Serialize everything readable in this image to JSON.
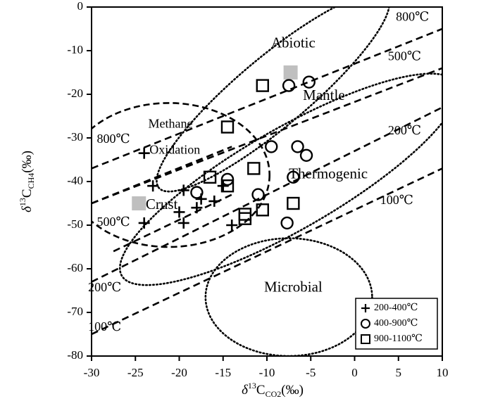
{
  "chart_data": {
    "type": "scatter",
    "x_axis": {
      "range": [
        -30,
        10
      ],
      "ticks": [
        -30,
        -25,
        -20,
        -15,
        -10,
        -5,
        0,
        5,
        10
      ],
      "tick_labels": [
        "-30",
        "-25",
        "-20",
        "-15",
        "-10",
        "-5",
        "0",
        "5",
        "10"
      ],
      "label": {
        "delta": "δ",
        "sup": "13",
        "base": "C",
        "sub": "CO2",
        "unit": "(‰)"
      }
    },
    "y_axis": {
      "range": [
        -80,
        0
      ],
      "ticks": [
        0,
        -10,
        -20,
        -30,
        -40,
        -50,
        -60,
        -70,
        -80
      ],
      "tick_labels": [
        "0",
        "-10",
        "-20",
        "-30",
        "-40",
        "-50",
        "-60",
        "-70",
        "-80"
      ],
      "label": {
        "delta": "δ",
        "sup": "13",
        "base": "C",
        "sub": "CH4",
        "unit": "(‰)"
      }
    },
    "isotherms": [
      {
        "name": "800℃ upper",
        "from": [
          -30,
          -37
        ],
        "to": [
          10,
          -5
        ]
      },
      {
        "name": "500℃ upper",
        "from": [
          -30,
          -45
        ],
        "to": [
          10,
          -14
        ]
      },
      {
        "name": "200℃ upper",
        "from": [
          -30,
          -63
        ],
        "to": [
          10,
          -23
        ]
      },
      {
        "name": "100℃ upper",
        "from": [
          -30,
          -75
        ],
        "to": [
          10,
          -37
        ]
      },
      {
        "name": "800℃ crust",
        "from": [
          -30,
          -45
        ],
        "to": [
          -14,
          -32
        ]
      },
      {
        "name": "500℃ crust",
        "from": [
          -27.5,
          -56
        ],
        "to": [
          -14,
          -43
        ]
      }
    ],
    "isotherm_labels": [
      {
        "text": "800℃",
        "x": 6.6,
        "y": -2.5
      },
      {
        "text": "500℃",
        "x": 5.7,
        "y": -11.5
      },
      {
        "text": "200℃",
        "x": 5.7,
        "y": -28.5
      },
      {
        "text": "100℃",
        "x": 4.8,
        "y": -44.5
      },
      {
        "text": "800℃",
        "x": -27.5,
        "y": -30.5
      },
      {
        "text": "500℃",
        "x": -27.5,
        "y": -49.5
      },
      {
        "text": "200℃",
        "x": -28.5,
        "y": -64.5
      },
      {
        "text": "100℃",
        "x": -28.5,
        "y": -73.5
      }
    ],
    "regions": [
      {
        "name": "Abiotic",
        "style": "dotted",
        "cx": -9.3,
        "cy": -19.5,
        "rx": 17,
        "ry": 8,
        "rotate": -40
      },
      {
        "name": "Thermogenic",
        "style": "dotted",
        "cx": -7.5,
        "cy": -39.5,
        "rx": 22,
        "ry": 11.5,
        "rotate": -30
      },
      {
        "name": "Microbial",
        "style": "dotted",
        "cx": -7.5,
        "cy": -66.5,
        "rx": 9.5,
        "ry": 13.5,
        "rotate": 0
      },
      {
        "name": "Crust",
        "style": "dashed",
        "cx": -21.2,
        "cy": -38.5,
        "rx": 11.5,
        "ry": 16.5,
        "rotate": 0
      }
    ],
    "region_labels": [
      {
        "text": "Abiotic",
        "x": -7,
        "y": -8.5,
        "size": "large"
      },
      {
        "text": "Mantle",
        "x": -3.5,
        "y": -20.5,
        "size": "large"
      },
      {
        "text": "Thermogenic",
        "x": -3,
        "y": -38.5,
        "size": "large"
      },
      {
        "text": "Microbial",
        "x": -7,
        "y": -64.5,
        "size": "large"
      },
      {
        "text": "Methane",
        "x": -21,
        "y": -27,
        "size": "small"
      },
      {
        "text": "Oxidation",
        "x": -20.5,
        "y": -33,
        "size": "small"
      },
      {
        "text": "Crust",
        "x": -22,
        "y": -45.5,
        "size": "large"
      }
    ],
    "end_members": [
      {
        "name": "Mantle",
        "x": -7.3,
        "y": -15
      },
      {
        "name": "Crust",
        "x": -24.6,
        "y": -45
      }
    ],
    "series": [
      {
        "name": "200-400℃",
        "marker": "plus",
        "points": [
          [
            -24,
            -33.5
          ],
          [
            -23,
            -41
          ],
          [
            -24,
            -49.5
          ],
          [
            -20,
            -47
          ],
          [
            -19.5,
            -49.5
          ],
          [
            -19.5,
            -42
          ],
          [
            -18,
            -46
          ],
          [
            -17.5,
            -44
          ],
          [
            -16,
            -44.5
          ],
          [
            -15,
            -41
          ],
          [
            -14,
            -50
          ]
        ]
      },
      {
        "name": "400-900℃",
        "marker": "circle",
        "points": [
          [
            -18,
            -42.5
          ],
          [
            -14.5,
            -39.5
          ],
          [
            -11,
            -43
          ],
          [
            -9.5,
            -32
          ],
          [
            -7.5,
            -18
          ],
          [
            -5.2,
            -17.2
          ],
          [
            -6.5,
            -32
          ],
          [
            -5.5,
            -34
          ],
          [
            -7,
            -39
          ],
          [
            -7.7,
            -49.5
          ]
        ]
      },
      {
        "name": "900-1100℃",
        "marker": "square",
        "points": [
          [
            -10.5,
            -18
          ],
          [
            -14.5,
            -27.5
          ],
          [
            -16.5,
            -39
          ],
          [
            -14.5,
            -41
          ],
          [
            -11.5,
            -37
          ],
          [
            -10.5,
            -46.5
          ],
          [
            -12.5,
            -47.5
          ],
          [
            -12.5,
            -48.5
          ],
          [
            -7,
            -45
          ]
        ]
      }
    ],
    "legend": {
      "position": "bottom-right",
      "entries": [
        {
          "marker": "plus",
          "label": "200-400℃"
        },
        {
          "marker": "circle",
          "label": "400-900℃"
        },
        {
          "marker": "square",
          "label": "900-1100℃"
        }
      ]
    },
    "colors": {
      "ink": "#000000",
      "end_member": "#bfbfbf",
      "background": "#ffffff"
    }
  }
}
